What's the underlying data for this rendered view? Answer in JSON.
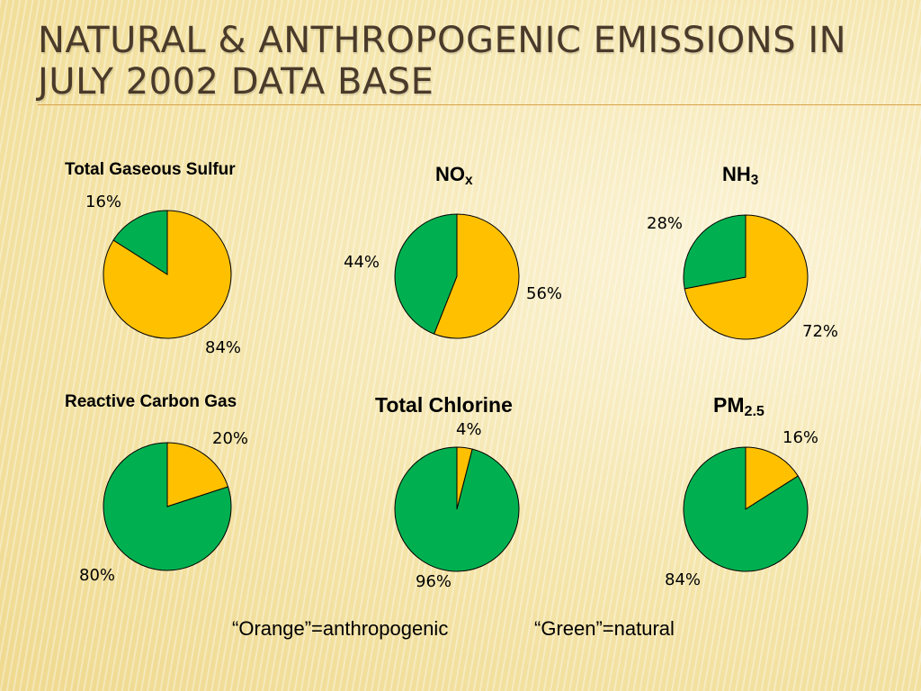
{
  "title": "Natural & Anthropogenic Emissions in July 2002 Data Base",
  "legend_note": {
    "orange": "“Orange”=anthropogenic",
    "green": "“Green”=natural"
  },
  "colors": {
    "orange": "#ffc000",
    "green": "#00b050",
    "outline": "#000000"
  },
  "chart_data": [
    {
      "type": "pie",
      "title": "Total Gaseous Sulfur",
      "title_sub": "",
      "slices": [
        {
          "name": "anthropogenic",
          "value": 84,
          "label": "84%",
          "color": "#ffc000"
        },
        {
          "name": "natural",
          "value": 16,
          "label": "16%",
          "color": "#00b050"
        }
      ]
    },
    {
      "type": "pie",
      "title": "NO",
      "title_sub": "x",
      "slices": [
        {
          "name": "anthropogenic",
          "value": 56,
          "label": "56%",
          "color": "#ffc000"
        },
        {
          "name": "natural",
          "value": 44,
          "label": "44%",
          "color": "#00b050"
        }
      ]
    },
    {
      "type": "pie",
      "title": "NH",
      "title_sub": "3",
      "slices": [
        {
          "name": "anthropogenic",
          "value": 72,
          "label": "72%",
          "color": "#ffc000"
        },
        {
          "name": "natural",
          "value": 28,
          "label": "28%",
          "color": "#00b050"
        }
      ]
    },
    {
      "type": "pie",
      "title": "Reactive Carbon Gas",
      "title_sub": "",
      "slices": [
        {
          "name": "anthropogenic",
          "value": 20,
          "label": "20%",
          "color": "#ffc000"
        },
        {
          "name": "natural",
          "value": 80,
          "label": "80%",
          "color": "#00b050"
        }
      ]
    },
    {
      "type": "pie",
      "title": "Total Chlorine",
      "title_sub": "",
      "slices": [
        {
          "name": "anthropogenic",
          "value": 4,
          "label": "4%",
          "color": "#ffc000"
        },
        {
          "name": "natural",
          "value": 96,
          "label": "96%",
          "color": "#00b050"
        }
      ]
    },
    {
      "type": "pie",
      "title": "PM",
      "title_sub": "2.5",
      "slices": [
        {
          "name": "anthropogenic",
          "value": 16,
          "label": "16%",
          "color": "#ffc000"
        },
        {
          "name": "natural",
          "value": 84,
          "label": "84%",
          "color": "#00b050"
        }
      ]
    }
  ]
}
